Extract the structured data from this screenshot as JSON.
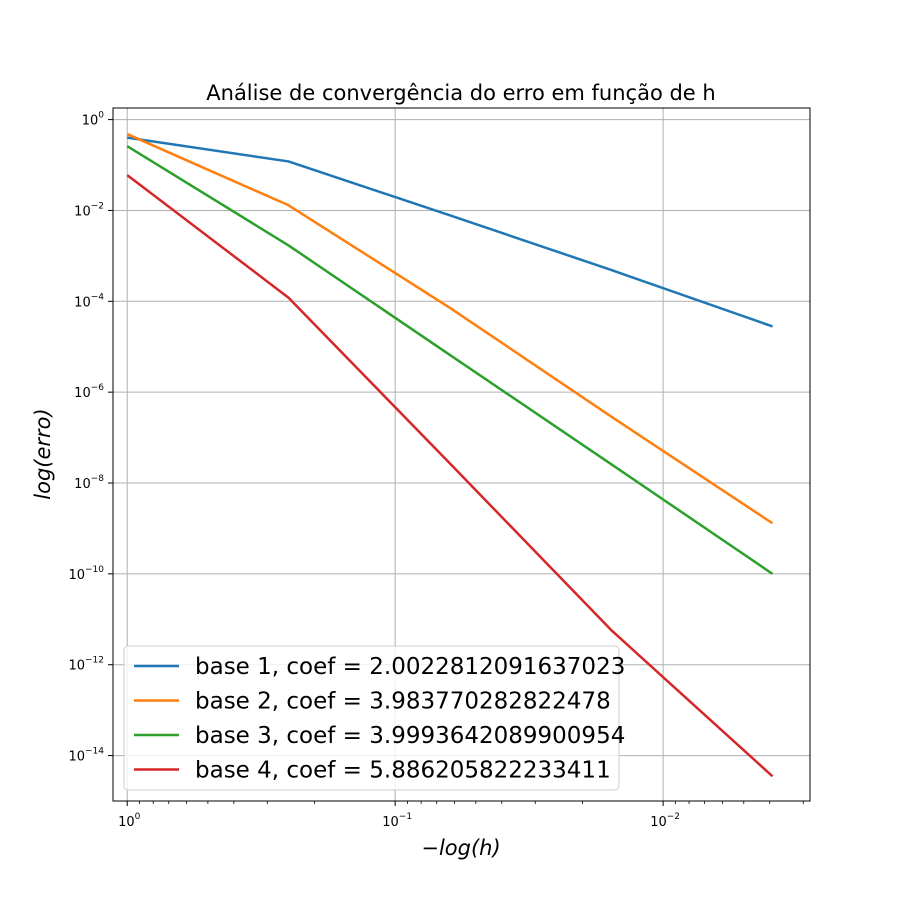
{
  "chart_data": {
    "type": "line",
    "title": "Análise de convergência do erro em função de h",
    "xlabel": "−log(h)",
    "ylabel": "log(erro)",
    "x_scale": "log",
    "y_scale": "log",
    "x_axis_inverted": true,
    "xlim": [
      1.13,
      0.00283
    ],
    "ylim": [
      1e-15,
      1.8
    ],
    "grid": true,
    "legend_placement": "lower-left",
    "x_ticks": [
      {
        "base": "10",
        "exp": "0",
        "value": 1
      },
      {
        "base": "10",
        "exp": "−1",
        "value": 0.1
      },
      {
        "base": "10",
        "exp": "−2",
        "value": 0.01
      }
    ],
    "y_ticks": [
      {
        "base": "10",
        "exp": "0",
        "value": 1
      },
      {
        "base": "10",
        "exp": "−2",
        "value": 0.01
      },
      {
        "base": "10",
        "exp": "−4",
        "value": 0.0001
      },
      {
        "base": "10",
        "exp": "−6",
        "value": 1e-06
      },
      {
        "base": "10",
        "exp": "−8",
        "value": 1e-08
      },
      {
        "base": "10",
        "exp": "−10",
        "value": 1e-10
      },
      {
        "base": "10",
        "exp": "−12",
        "value": 1e-12
      },
      {
        "base": "10",
        "exp": "−14",
        "value": 1e-14
      }
    ],
    "x": [
      1,
      0.25,
      0.0625,
      0.015625,
      0.00390625
    ],
    "series": [
      {
        "name": "base 1, coef = 2.0022812091637023",
        "color": "#1f77b4",
        "values": [
          0.4,
          0.12,
          0.0078,
          0.00049,
          2.8e-05
        ]
      },
      {
        "name": "base 2, coef = 3.983770282822478",
        "color": "#ff7f0e",
        "values": [
          0.48,
          0.013,
          7.2e-05,
          2.9e-07,
          1.3e-09
        ]
      },
      {
        "name": "base 3, coef = 3.9993642089900954",
        "color": "#2ca02c",
        "values": [
          0.26,
          0.0017,
          6.6e-06,
          2.6e-08,
          1e-10
        ]
      },
      {
        "name": "base 4, coef = 5.886205822233411",
        "color": "#d62728",
        "values": [
          0.06,
          0.00012,
          2.7e-08,
          5.8e-12,
          3.5e-15
        ]
      }
    ]
  },
  "colors": {
    "grid": "#b0b0b0",
    "axes": "#000000",
    "legend_border": "#cccccc"
  }
}
